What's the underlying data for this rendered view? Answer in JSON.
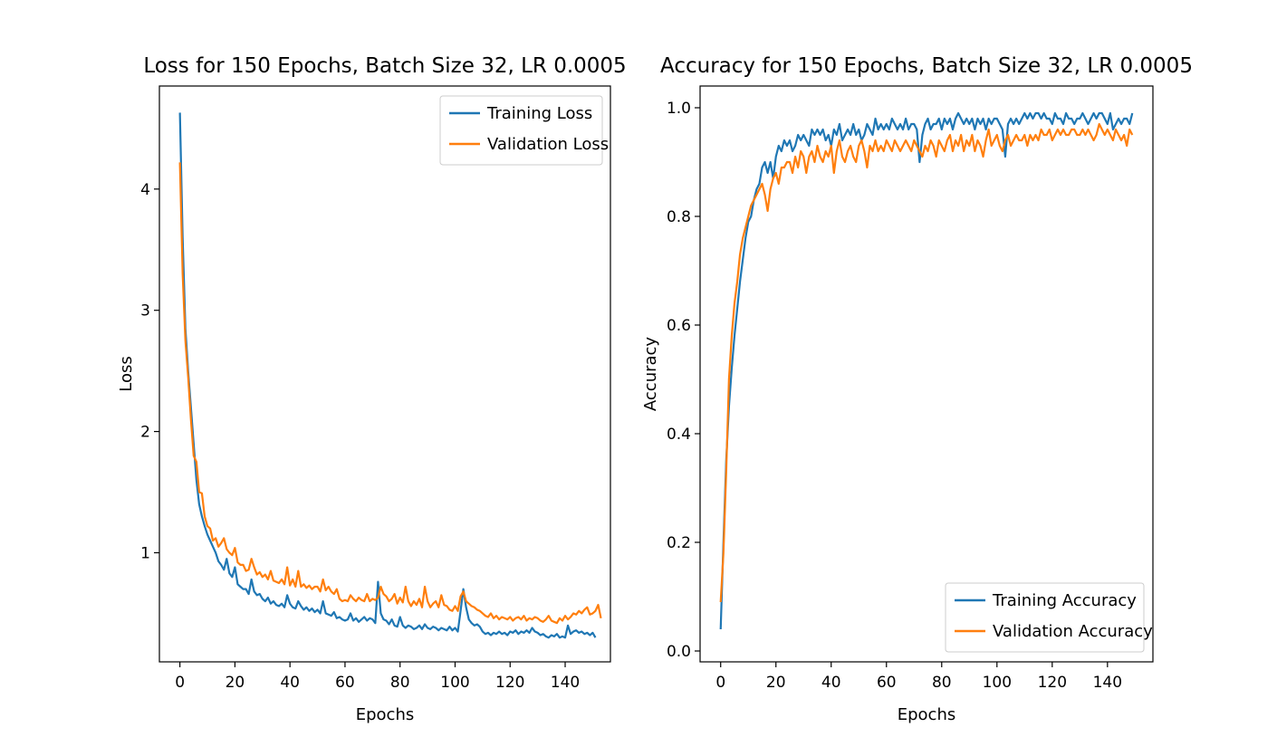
{
  "chart_data": [
    {
      "type": "line",
      "title": "Loss for 150 Epochs, Batch Size 32, LR 0.0005",
      "xlabel": "Epochs",
      "ylabel": "Loss",
      "xlim": [
        -7.45,
        156.45
      ],
      "ylim": [
        0.1,
        4.85
      ],
      "xticks": [
        0,
        20,
        40,
        60,
        80,
        100,
        120,
        140
      ],
      "yticks": [
        1,
        2,
        3,
        4
      ],
      "grid": false,
      "legend": "top-right",
      "x_start": 0,
      "x_step": 1,
      "series": [
        {
          "name": "Training Loss",
          "color": "#1f77b4",
          "values": [
            4.63,
            3.6,
            2.85,
            2.5,
            2.2,
            1.9,
            1.6,
            1.4,
            1.3,
            1.22,
            1.15,
            1.1,
            1.05,
            1.0,
            0.93,
            0.9,
            0.86,
            0.95,
            0.83,
            0.8,
            0.88,
            0.74,
            0.72,
            0.7,
            0.7,
            0.66,
            0.78,
            0.68,
            0.65,
            0.66,
            0.62,
            0.6,
            0.63,
            0.58,
            0.6,
            0.57,
            0.56,
            0.58,
            0.55,
            0.65,
            0.58,
            0.55,
            0.54,
            0.6,
            0.56,
            0.53,
            0.55,
            0.52,
            0.54,
            0.51,
            0.53,
            0.5,
            0.6,
            0.5,
            0.49,
            0.48,
            0.51,
            0.46,
            0.47,
            0.45,
            0.44,
            0.45,
            0.5,
            0.44,
            0.46,
            0.43,
            0.45,
            0.47,
            0.44,
            0.46,
            0.45,
            0.42,
            0.76,
            0.5,
            0.45,
            0.44,
            0.41,
            0.45,
            0.4,
            0.39,
            0.47,
            0.4,
            0.38,
            0.4,
            0.39,
            0.37,
            0.38,
            0.4,
            0.37,
            0.41,
            0.38,
            0.37,
            0.39,
            0.38,
            0.36,
            0.38,
            0.37,
            0.36,
            0.39,
            0.36,
            0.38,
            0.35,
            0.52,
            0.7,
            0.55,
            0.45,
            0.42,
            0.4,
            0.41,
            0.39,
            0.35,
            0.33,
            0.34,
            0.32,
            0.34,
            0.33,
            0.35,
            0.33,
            0.34,
            0.32,
            0.35,
            0.34,
            0.36,
            0.33,
            0.35,
            0.34,
            0.36,
            0.34,
            0.38,
            0.35,
            0.34,
            0.32,
            0.33,
            0.31,
            0.3,
            0.32,
            0.31,
            0.33,
            0.3,
            0.31,
            0.3,
            0.4,
            0.33,
            0.35,
            0.36,
            0.34,
            0.35,
            0.33,
            0.34,
            0.32,
            0.34,
            0.3
          ]
        },
        {
          "name": "Validation Loss",
          "color": "#ff7f0e",
          "values": [
            4.22,
            3.3,
            2.75,
            2.45,
            2.1,
            1.8,
            1.75,
            1.5,
            1.49,
            1.3,
            1.22,
            1.2,
            1.1,
            1.12,
            1.05,
            1.08,
            1.12,
            1.03,
            1.0,
            0.98,
            1.04,
            0.92,
            0.9,
            0.9,
            0.85,
            0.86,
            0.95,
            0.88,
            0.82,
            0.84,
            0.8,
            0.82,
            0.78,
            0.85,
            0.77,
            0.76,
            0.75,
            0.78,
            0.74,
            0.88,
            0.73,
            0.78,
            0.72,
            0.85,
            0.72,
            0.74,
            0.71,
            0.73,
            0.7,
            0.72,
            0.72,
            0.68,
            0.78,
            0.69,
            0.72,
            0.68,
            0.66,
            0.7,
            0.62,
            0.6,
            0.61,
            0.6,
            0.65,
            0.62,
            0.6,
            0.63,
            0.61,
            0.6,
            0.66,
            0.6,
            0.62,
            0.61,
            0.63,
            0.72,
            0.66,
            0.64,
            0.6,
            0.62,
            0.66,
            0.58,
            0.63,
            0.59,
            0.72,
            0.6,
            0.56,
            0.6,
            0.57,
            0.62,
            0.55,
            0.72,
            0.6,
            0.55,
            0.58,
            0.6,
            0.55,
            0.65,
            0.57,
            0.56,
            0.53,
            0.52,
            0.56,
            0.52,
            0.64,
            0.68,
            0.6,
            0.58,
            0.56,
            0.55,
            0.53,
            0.52,
            0.5,
            0.48,
            0.47,
            0.5,
            0.46,
            0.48,
            0.45,
            0.47,
            0.46,
            0.45,
            0.47,
            0.44,
            0.46,
            0.47,
            0.45,
            0.48,
            0.44,
            0.46,
            0.45,
            0.47,
            0.46,
            0.44,
            0.43,
            0.45,
            0.48,
            0.44,
            0.43,
            0.42,
            0.46,
            0.44,
            0.48,
            0.45,
            0.47,
            0.5,
            0.49,
            0.52,
            0.5,
            0.53,
            0.55,
            0.49,
            0.5,
            0.52,
            0.57,
            0.46
          ]
        }
      ]
    },
    {
      "type": "line",
      "title": "Accuracy for 150 Epochs, Batch Size 32, LR 0.0005",
      "xlabel": "Epochs",
      "ylabel": "Accuracy",
      "xlim": [
        -7.45,
        156.45
      ],
      "ylim": [
        -0.02,
        1.04
      ],
      "xticks": [
        0,
        20,
        40,
        60,
        80,
        100,
        120,
        140
      ],
      "yticks": [
        0.0,
        0.2,
        0.4,
        0.6,
        0.8,
        1.0
      ],
      "grid": false,
      "legend": "bottom-right",
      "x_start": 0,
      "x_step": 1,
      "series": [
        {
          "name": "Training Accuracy",
          "color": "#1f77b4",
          "values": [
            0.04,
            0.2,
            0.35,
            0.45,
            0.52,
            0.58,
            0.63,
            0.68,
            0.72,
            0.76,
            0.79,
            0.8,
            0.83,
            0.85,
            0.86,
            0.89,
            0.9,
            0.88,
            0.9,
            0.87,
            0.91,
            0.93,
            0.92,
            0.94,
            0.93,
            0.94,
            0.92,
            0.93,
            0.95,
            0.94,
            0.95,
            0.94,
            0.93,
            0.96,
            0.95,
            0.96,
            0.95,
            0.96,
            0.94,
            0.95,
            0.93,
            0.96,
            0.95,
            0.97,
            0.94,
            0.95,
            0.96,
            0.95,
            0.97,
            0.95,
            0.96,
            0.94,
            0.95,
            0.97,
            0.96,
            0.95,
            0.98,
            0.96,
            0.97,
            0.96,
            0.97,
            0.96,
            0.98,
            0.97,
            0.96,
            0.97,
            0.96,
            0.98,
            0.96,
            0.97,
            0.97,
            0.96,
            0.9,
            0.95,
            0.97,
            0.98,
            0.96,
            0.97,
            0.97,
            0.98,
            0.96,
            0.98,
            0.97,
            0.98,
            0.96,
            0.98,
            0.99,
            0.98,
            0.97,
            0.98,
            0.97,
            0.98,
            0.96,
            0.98,
            0.97,
            0.98,
            0.96,
            0.98,
            0.97,
            0.98,
            0.98,
            0.97,
            0.96,
            0.91,
            0.97,
            0.98,
            0.97,
            0.98,
            0.97,
            0.98,
            0.99,
            0.98,
            0.99,
            0.98,
            0.99,
            0.99,
            0.98,
            0.99,
            0.98,
            0.98,
            0.97,
            0.99,
            0.98,
            0.98,
            0.97,
            0.99,
            0.98,
            0.98,
            0.97,
            0.98,
            0.98,
            0.99,
            0.98,
            0.97,
            0.98,
            0.99,
            0.98,
            0.99,
            0.99,
            0.98,
            0.97,
            0.99,
            0.96,
            0.97,
            0.98,
            0.97,
            0.98,
            0.98,
            0.97,
            0.99
          ]
        },
        {
          "name": "Validation Accuracy",
          "color": "#ff7f0e",
          "values": [
            0.09,
            0.18,
            0.33,
            0.5,
            0.58,
            0.64,
            0.68,
            0.73,
            0.76,
            0.78,
            0.8,
            0.82,
            0.83,
            0.84,
            0.85,
            0.86,
            0.84,
            0.81,
            0.85,
            0.87,
            0.88,
            0.86,
            0.89,
            0.89,
            0.9,
            0.9,
            0.88,
            0.91,
            0.89,
            0.92,
            0.91,
            0.88,
            0.91,
            0.92,
            0.9,
            0.93,
            0.91,
            0.9,
            0.92,
            0.91,
            0.93,
            0.88,
            0.92,
            0.94,
            0.91,
            0.9,
            0.92,
            0.93,
            0.91,
            0.9,
            0.93,
            0.94,
            0.92,
            0.89,
            0.93,
            0.92,
            0.94,
            0.92,
            0.93,
            0.92,
            0.94,
            0.93,
            0.92,
            0.94,
            0.93,
            0.92,
            0.93,
            0.94,
            0.93,
            0.92,
            0.94,
            0.93,
            0.92,
            0.91,
            0.93,
            0.92,
            0.94,
            0.93,
            0.91,
            0.94,
            0.93,
            0.92,
            0.94,
            0.95,
            0.92,
            0.94,
            0.93,
            0.95,
            0.92,
            0.94,
            0.93,
            0.95,
            0.92,
            0.94,
            0.93,
            0.91,
            0.94,
            0.96,
            0.93,
            0.94,
            0.95,
            0.93,
            0.92,
            0.94,
            0.95,
            0.93,
            0.94,
            0.95,
            0.94,
            0.94,
            0.95,
            0.93,
            0.95,
            0.94,
            0.95,
            0.94,
            0.96,
            0.95,
            0.95,
            0.96,
            0.94,
            0.95,
            0.96,
            0.95,
            0.96,
            0.95,
            0.95,
            0.96,
            0.96,
            0.95,
            0.95,
            0.96,
            0.95,
            0.96,
            0.95,
            0.94,
            0.95,
            0.97,
            0.96,
            0.95,
            0.96,
            0.95,
            0.94,
            0.96,
            0.95,
            0.94,
            0.95,
            0.93,
            0.96,
            0.95
          ]
        }
      ]
    }
  ]
}
